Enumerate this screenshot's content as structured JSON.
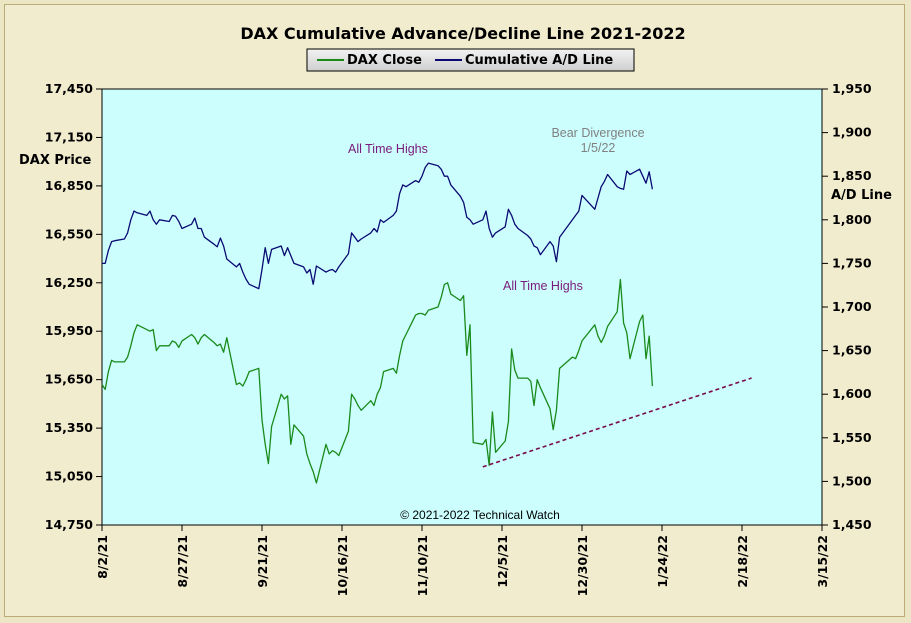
{
  "chart_data": {
    "type": "line",
    "title": "DAX Cumulative  Advance/Decline  Line  2021-2022",
    "y_left_label": "DAX Price",
    "y_right_label": "A/D Line",
    "y_left_lim": [
      14750,
      17450
    ],
    "y_left_ticks": [
      "14,750",
      "15,050",
      "15,350",
      "15,650",
      "15,950",
      "16,250",
      "16,550",
      "16,850",
      "17,150",
      "17,450"
    ],
    "y_right_lim": [
      1450,
      1950
    ],
    "y_right_ticks": [
      "1,450",
      "1,500",
      "1,550",
      "1,600",
      "1,650",
      "1,700",
      "1,750",
      "1,800",
      "1,850",
      "1,900",
      "1,950"
    ],
    "x_range": [
      "2021-08-02",
      "2022-03-15"
    ],
    "x_ticks": [
      "8/2/21",
      "8/27/21",
      "9/21/21",
      "10/16/21",
      "11/10/21",
      "12/5/21",
      "12/30/21",
      "1/24/22",
      "2/18/22",
      "3/15/22"
    ],
    "grid": false,
    "plot_background": "#ccfefe",
    "legend": {
      "placement": "top-center",
      "entries": [
        "DAX Close",
        "Cumulative A/D Line"
      ]
    },
    "series": [
      {
        "name": "DAX Close",
        "axis": "left",
        "color": "#1a8a1a",
        "x": [
          "2021-08-02",
          "2021-08-03",
          "2021-08-04",
          "2021-08-05",
          "2021-08-06",
          "2021-08-09",
          "2021-08-10",
          "2021-08-11",
          "2021-08-12",
          "2021-08-13",
          "2021-08-16",
          "2021-08-17",
          "2021-08-18",
          "2021-08-19",
          "2021-08-20",
          "2021-08-23",
          "2021-08-24",
          "2021-08-25",
          "2021-08-26",
          "2021-08-27",
          "2021-08-30",
          "2021-08-31",
          "2021-09-01",
          "2021-09-02",
          "2021-09-03",
          "2021-09-06",
          "2021-09-07",
          "2021-09-08",
          "2021-09-09",
          "2021-09-10",
          "2021-09-13",
          "2021-09-14",
          "2021-09-15",
          "2021-09-16",
          "2021-09-17",
          "2021-09-20",
          "2021-09-21",
          "2021-09-22",
          "2021-09-23",
          "2021-09-24",
          "2021-09-27",
          "2021-09-28",
          "2021-09-29",
          "2021-09-30",
          "2021-10-01",
          "2021-10-04",
          "2021-10-05",
          "2021-10-06",
          "2021-10-07",
          "2021-10-08",
          "2021-10-11",
          "2021-10-12",
          "2021-10-13",
          "2021-10-14",
          "2021-10-15",
          "2021-10-18",
          "2021-10-19",
          "2021-10-20",
          "2021-10-21",
          "2021-10-22",
          "2021-10-25",
          "2021-10-26",
          "2021-10-27",
          "2021-10-28",
          "2021-10-29",
          "2021-11-01",
          "2021-11-02",
          "2021-11-03",
          "2021-11-04",
          "2021-11-05",
          "2021-11-08",
          "2021-11-09",
          "2021-11-10",
          "2021-11-11",
          "2021-11-12",
          "2021-11-15",
          "2021-11-16",
          "2021-11-17",
          "2021-11-18",
          "2021-11-19",
          "2021-11-22",
          "2021-11-23",
          "2021-11-24",
          "2021-11-25",
          "2021-11-26",
          "2021-11-29",
          "2021-11-30",
          "2021-12-01",
          "2021-12-02",
          "2021-12-03",
          "2021-12-06",
          "2021-12-07",
          "2021-12-08",
          "2021-12-09",
          "2021-12-10",
          "2021-12-13",
          "2021-12-14",
          "2021-12-15",
          "2021-12-16",
          "2021-12-17",
          "2021-12-20",
          "2021-12-21",
          "2021-12-22",
          "2021-12-23",
          "2021-12-27",
          "2021-12-28",
          "2021-12-29",
          "2021-12-30",
          "2022-01-03",
          "2022-01-04",
          "2022-01-05",
          "2022-01-06",
          "2022-01-07",
          "2022-01-10",
          "2022-01-11",
          "2022-01-12",
          "2022-01-13",
          "2022-01-14",
          "2022-01-17",
          "2022-01-18",
          "2022-01-19",
          "2022-01-20",
          "2022-01-21"
        ],
        "values": [
          15620,
          15590,
          15700,
          15770,
          15760,
          15760,
          15790,
          15860,
          15940,
          15990,
          15960,
          15950,
          15960,
          15830,
          15860,
          15860,
          15890,
          15880,
          15850,
          15890,
          15930,
          15910,
          15870,
          15910,
          15930,
          15880,
          15860,
          15870,
          15820,
          15910,
          15620,
          15630,
          15610,
          15650,
          15700,
          15720,
          15400,
          15250,
          15130,
          15360,
          15560,
          15530,
          15550,
          15250,
          15370,
          15300,
          15190,
          15130,
          15080,
          15010,
          15250,
          15190,
          15210,
          15200,
          15180,
          15330,
          15560,
          15530,
          15490,
          15460,
          15520,
          15490,
          15560,
          15600,
          15700,
          15720,
          15690,
          15800,
          15890,
          15930,
          16050,
          16060,
          16060,
          16050,
          16080,
          16100,
          16160,
          16240,
          16250,
          16180,
          16140,
          16170,
          15800,
          15990,
          15260,
          15250,
          15280,
          15120,
          15450,
          15200,
          15270,
          15390,
          15840,
          15710,
          15660,
          15660,
          15640,
          15490,
          15650,
          15600,
          15470,
          15340,
          15460,
          15720,
          15790,
          15780,
          15830,
          15890,
          15990,
          15920,
          15880,
          15920,
          15980,
          16070,
          16270,
          16000,
          15940,
          15780,
          16010,
          16050,
          15780,
          15920,
          15610
        ]
      },
      {
        "name": "Cumulative A/D Line",
        "axis": "right",
        "color": "#0a0a72",
        "x": [
          "2021-08-02",
          "2021-08-03",
          "2021-08-04",
          "2021-08-05",
          "2021-08-06",
          "2021-08-09",
          "2021-08-10",
          "2021-08-11",
          "2021-08-12",
          "2021-08-13",
          "2021-08-16",
          "2021-08-17",
          "2021-08-18",
          "2021-08-19",
          "2021-08-20",
          "2021-08-23",
          "2021-08-24",
          "2021-08-25",
          "2021-08-26",
          "2021-08-27",
          "2021-08-30",
          "2021-08-31",
          "2021-09-01",
          "2021-09-02",
          "2021-09-03",
          "2021-09-06",
          "2021-09-07",
          "2021-09-08",
          "2021-09-09",
          "2021-09-10",
          "2021-09-13",
          "2021-09-14",
          "2021-09-15",
          "2021-09-16",
          "2021-09-17",
          "2021-09-20",
          "2021-09-21",
          "2021-09-22",
          "2021-09-23",
          "2021-09-24",
          "2021-09-27",
          "2021-09-28",
          "2021-09-29",
          "2021-09-30",
          "2021-10-01",
          "2021-10-04",
          "2021-10-05",
          "2021-10-06",
          "2021-10-07",
          "2021-10-08",
          "2021-10-11",
          "2021-10-12",
          "2021-10-13",
          "2021-10-14",
          "2021-10-15",
          "2021-10-18",
          "2021-10-19",
          "2021-10-20",
          "2021-10-21",
          "2021-10-22",
          "2021-10-25",
          "2021-10-26",
          "2021-10-27",
          "2021-10-28",
          "2021-10-29",
          "2021-11-01",
          "2021-11-02",
          "2021-11-03",
          "2021-11-04",
          "2021-11-05",
          "2021-11-08",
          "2021-11-09",
          "2021-11-10",
          "2021-11-11",
          "2021-11-12",
          "2021-11-15",
          "2021-11-16",
          "2021-11-17",
          "2021-11-18",
          "2021-11-19",
          "2021-11-22",
          "2021-11-23",
          "2021-11-24",
          "2021-11-25",
          "2021-11-26",
          "2021-11-29",
          "2021-11-30",
          "2021-12-01",
          "2021-12-02",
          "2021-12-03",
          "2021-12-06",
          "2021-12-07",
          "2021-12-08",
          "2021-12-09",
          "2021-12-10",
          "2021-12-13",
          "2021-12-14",
          "2021-12-15",
          "2021-12-16",
          "2021-12-17",
          "2021-12-20",
          "2021-12-21",
          "2021-12-22",
          "2021-12-23",
          "2021-12-27",
          "2021-12-28",
          "2021-12-29",
          "2021-12-30",
          "2022-01-03",
          "2022-01-04",
          "2022-01-05",
          "2022-01-06",
          "2022-01-07",
          "2022-01-10",
          "2022-01-11",
          "2022-01-12",
          "2022-01-13",
          "2022-01-14",
          "2022-01-17",
          "2022-01-18",
          "2022-01-19",
          "2022-01-20",
          "2022-01-21"
        ],
        "values": [
          1750,
          1750,
          1765,
          1775,
          1776,
          1778,
          1785,
          1800,
          1810,
          1808,
          1805,
          1810,
          1800,
          1795,
          1800,
          1798,
          1805,
          1804,
          1798,
          1790,
          1795,
          1802,
          1790,
          1790,
          1780,
          1772,
          1769,
          1779,
          1770,
          1755,
          1746,
          1750,
          1740,
          1732,
          1726,
          1721,
          1743,
          1768,
          1750,
          1766,
          1770,
          1759,
          1768,
          1759,
          1750,
          1746,
          1739,
          1743,
          1726,
          1747,
          1740,
          1742,
          1743,
          1740,
          1746,
          1761,
          1785,
          1780,
          1775,
          1778,
          1785,
          1790,
          1786,
          1800,
          1797,
          1805,
          1810,
          1830,
          1840,
          1838,
          1845,
          1843,
          1850,
          1860,
          1865,
          1862,
          1858,
          1850,
          1850,
          1840,
          1827,
          1820,
          1803,
          1800,
          1795,
          1800,
          1810,
          1790,
          1780,
          1785,
          1792,
          1812,
          1805,
          1795,
          1790,
          1782,
          1778,
          1770,
          1768,
          1760,
          1775,
          1770,
          1752,
          1780,
          1800,
          1805,
          1810,
          1828,
          1812,
          1825,
          1838,
          1844,
          1852,
          1838,
          1836,
          1835,
          1856,
          1852,
          1858,
          1850,
          1842,
          1855,
          1835
        ]
      }
    ],
    "trendline": {
      "color": "#7a0a4a",
      "style": "dashed",
      "from": {
        "x": "2021-11-29",
        "y": 15110
      },
      "to": {
        "x": "2022-02-21",
        "y": 15660
      }
    },
    "annotations": [
      {
        "text": "All Time  Highs",
        "color": "#7a1a7a"
      },
      {
        "text": "All Time Highs",
        "color": "#7a1a7a"
      },
      {
        "text": "Bear Divergence",
        "color": "#808080"
      },
      {
        "text": "1/5/22",
        "color": "#808080"
      }
    ],
    "copyright": "© 2021-2022  Technical Watch"
  }
}
